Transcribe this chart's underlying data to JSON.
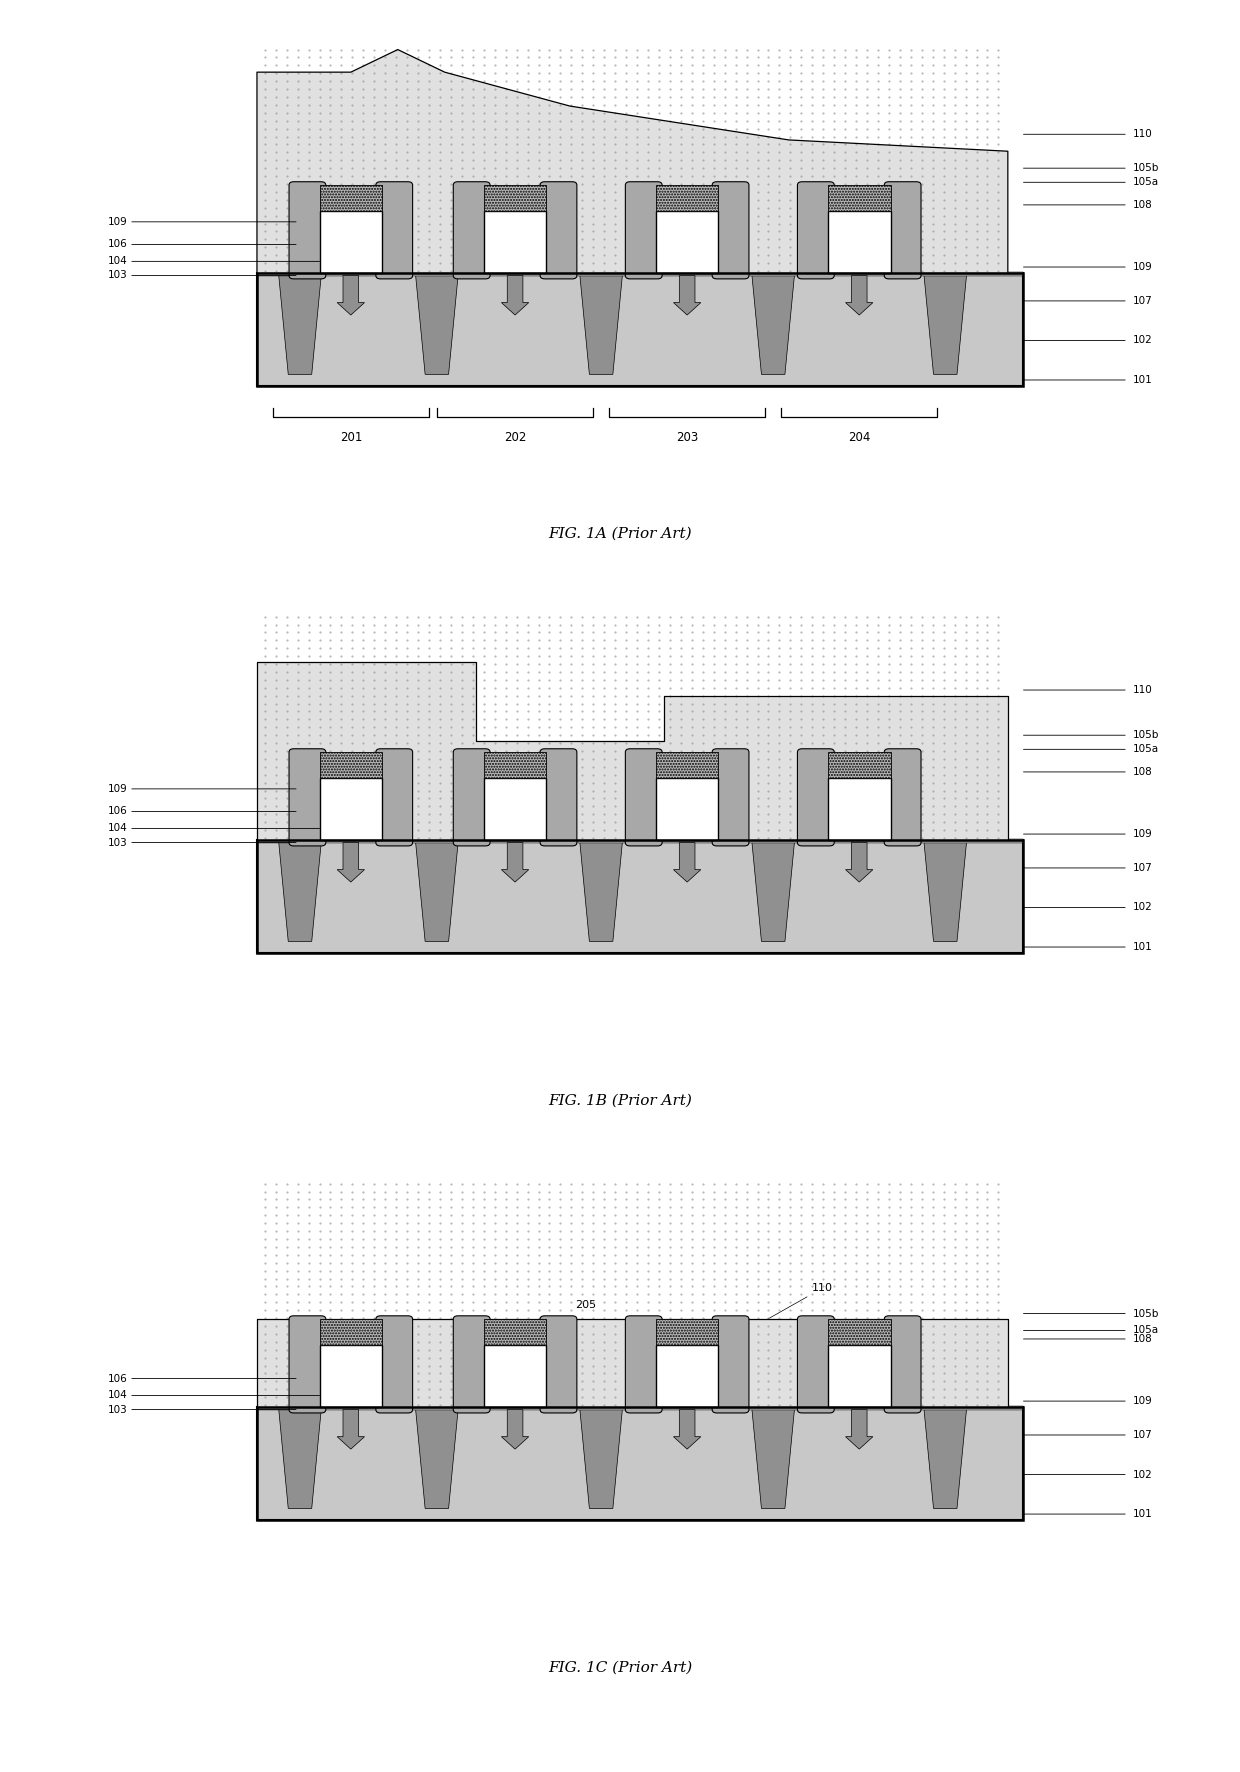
{
  "fig_width": 12.4,
  "fig_height": 17.72,
  "background_color": "#ffffff",
  "figures": [
    "FIG. 1A (Prior Art)",
    "FIG. 1B (Prior Art)",
    "FIG. 1C (Prior Art)"
  ],
  "region_labels": [
    "201",
    "202",
    "203",
    "204"
  ],
  "c_substrate": "#c8c8c8",
  "c_sti_fin": "#909090",
  "c_sti_base": "#b0b0b0",
  "c_poly": "#ffffff",
  "c_spacer": "#a8a8a8",
  "c_hm": "#b8b8b8",
  "c_ild": "#e0e0e0",
  "c_ild_dot": "#999999",
  "c_arrow": "#909090"
}
